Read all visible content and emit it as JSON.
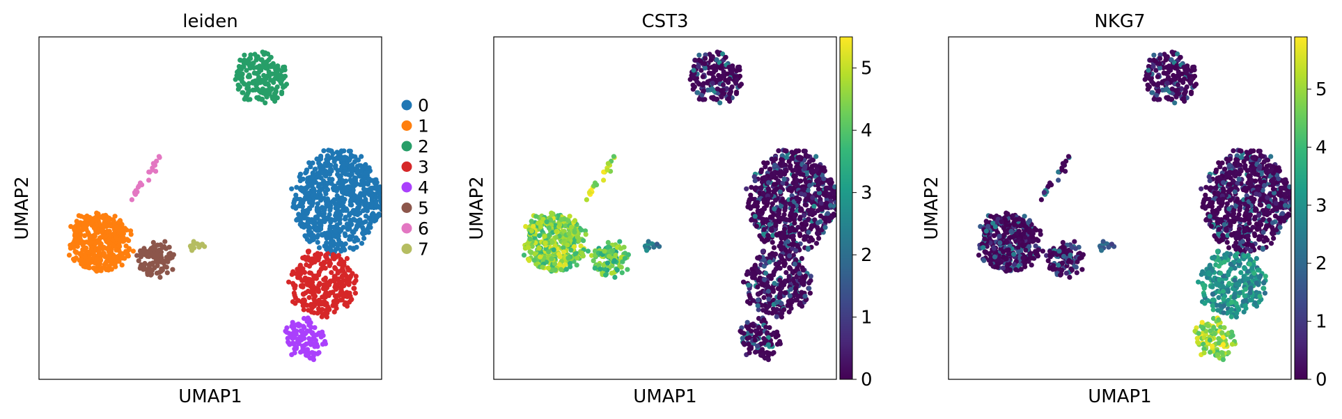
{
  "chart_data": [
    {
      "type": "scatter",
      "title": "leiden",
      "xlabel": "UMAP1",
      "ylabel": "UMAP2",
      "color_by": "categorical",
      "legend": {
        "placement": "right, outside plot",
        "entries": [
          {
            "label": "0",
            "color": "#1f77b4"
          },
          {
            "label": "1",
            "color": "#ff7f0e"
          },
          {
            "label": "2",
            "color": "#279e68"
          },
          {
            "label": "3",
            "color": "#d62728"
          },
          {
            "label": "4",
            "color": "#aa40fc"
          },
          {
            "label": "5",
            "color": "#8c564b"
          },
          {
            "label": "6",
            "color": "#e377c2"
          },
          {
            "label": "7",
            "color": "#b5bd61"
          }
        ]
      },
      "clusters": [
        {
          "label": "0",
          "cx": 8.2,
          "cy": 5.2,
          "rx": 1.3,
          "ry": 1.5,
          "n": 700
        },
        {
          "label": "1",
          "cx": 1.3,
          "cy": 4.0,
          "rx": 0.9,
          "ry": 0.85,
          "n": 420
        },
        {
          "label": "2",
          "cx": 6.0,
          "cy": 8.8,
          "rx": 0.75,
          "ry": 0.75,
          "n": 180
        },
        {
          "label": "3",
          "cx": 7.8,
          "cy": 2.8,
          "rx": 0.95,
          "ry": 0.95,
          "n": 300
        },
        {
          "label": "4",
          "cx": 7.3,
          "cy": 1.2,
          "rx": 0.55,
          "ry": 0.6,
          "n": 110
        },
        {
          "label": "5",
          "cx": 2.9,
          "cy": 3.5,
          "rx": 0.55,
          "ry": 0.5,
          "n": 110
        },
        {
          "label": "6",
          "cx": 2.5,
          "cy": 5.8,
          "rx": 0.5,
          "ry": 0.5,
          "n": 22
        },
        {
          "label": "7",
          "cx": 4.1,
          "cy": 3.9,
          "rx": 0.2,
          "ry": 0.1,
          "n": 12
        }
      ],
      "xlim": [
        -0.5,
        9.5
      ],
      "ylim": [
        0,
        10
      ],
      "ticks": "none"
    },
    {
      "type": "scatter",
      "title": "CST3",
      "xlabel": "UMAP1",
      "ylabel": "UMAP2",
      "color_by": "continuous",
      "colormap": "viridis",
      "colorbar": {
        "min": 0,
        "max": 5.5,
        "ticks": [
          "0",
          "1",
          "2",
          "3",
          "4",
          "5"
        ]
      },
      "cluster_expression": [
        {
          "label": "0",
          "value": 0.6
        },
        {
          "label": "1",
          "value": 4.4
        },
        {
          "label": "2",
          "value": 0.5
        },
        {
          "label": "3",
          "value": 0.5
        },
        {
          "label": "4",
          "value": 0.6
        },
        {
          "label": "5",
          "value": 4.0
        },
        {
          "label": "6",
          "value": 4.8
        },
        {
          "label": "7",
          "value": 2.0
        }
      ]
    },
    {
      "type": "scatter",
      "title": "NKG7",
      "xlabel": "UMAP1",
      "ylabel": "UMAP2",
      "color_by": "continuous",
      "colormap": "viridis",
      "colorbar": {
        "min": 0,
        "max": 5.9,
        "ticks": [
          "0",
          "1",
          "2",
          "3",
          "4",
          "5"
        ]
      },
      "cluster_expression": [
        {
          "label": "0",
          "value": 0.4
        },
        {
          "label": "1",
          "value": 0.5
        },
        {
          "label": "2",
          "value": 0.3
        },
        {
          "label": "3",
          "value": 3.0
        },
        {
          "label": "4",
          "value": 5.0
        },
        {
          "label": "5",
          "value": 0.8
        },
        {
          "label": "6",
          "value": 0.6
        },
        {
          "label": "7",
          "value": 1.5
        }
      ]
    }
  ]
}
